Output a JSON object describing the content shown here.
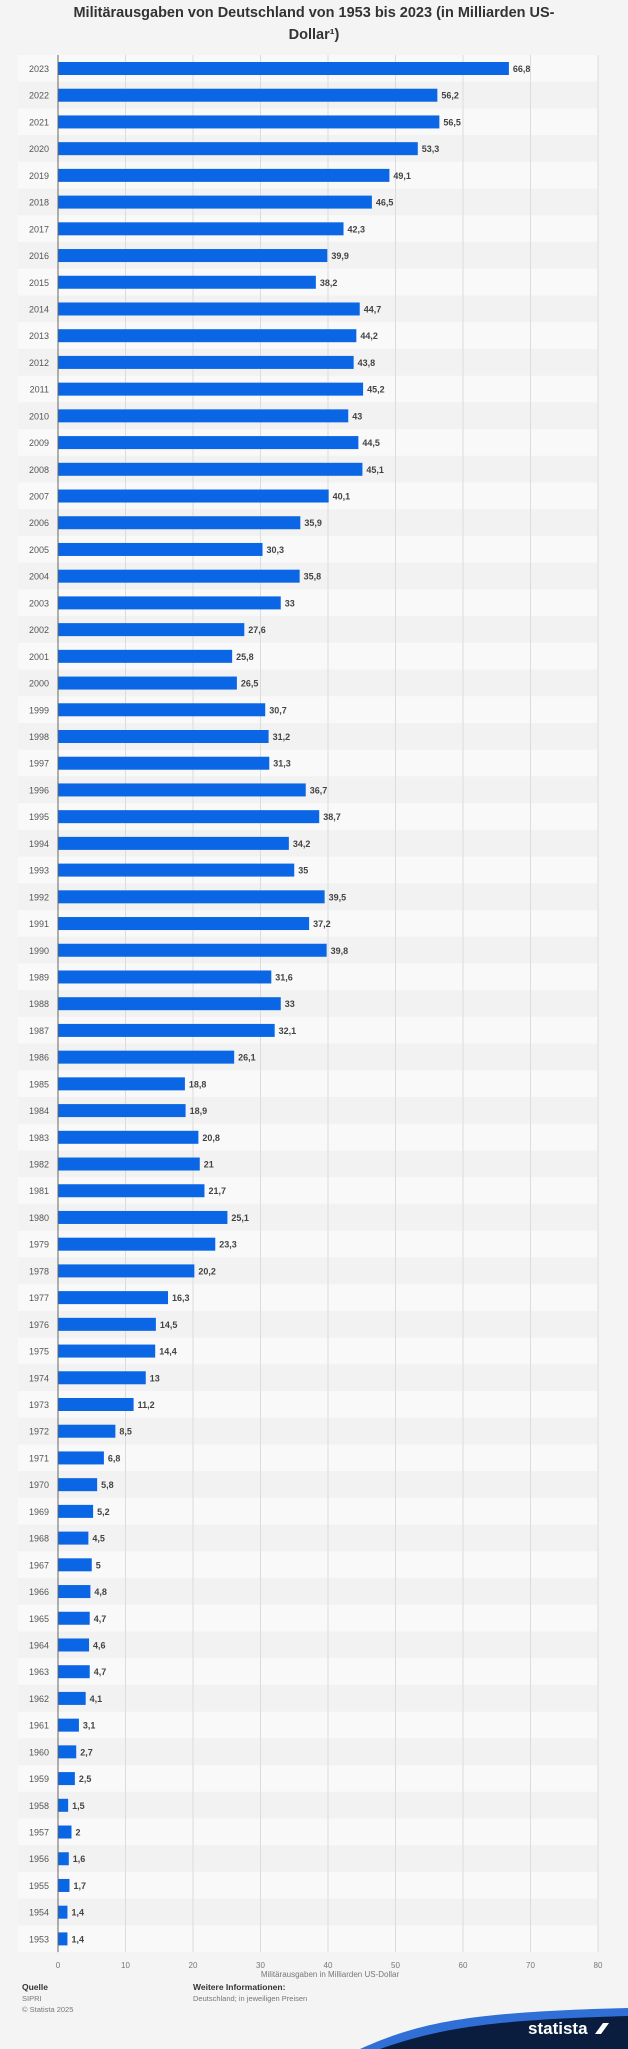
{
  "chart_data": {
    "type": "bar",
    "orientation": "horizontal",
    "title": "Militärausgaben von Deutschland von 1953 bis 2023 (in Milliarden US-Dollar¹)",
    "xlabel": "Militärausgaben in Milliarden US-Dollar",
    "ylabel": "",
    "xlim": [
      0,
      80
    ],
    "ticks": [
      0,
      10,
      20,
      30,
      40,
      50,
      60,
      70,
      80
    ],
    "categories": [
      "2023",
      "2022",
      "2021",
      "2020",
      "2019",
      "2018",
      "2017",
      "2016",
      "2015",
      "2014",
      "2013",
      "2012",
      "2011",
      "2010",
      "2009",
      "2008",
      "2007",
      "2006",
      "2005",
      "2004",
      "2003",
      "2002",
      "2001",
      "2000",
      "1999",
      "1998",
      "1997",
      "1996",
      "1995",
      "1994",
      "1993",
      "1992",
      "1991",
      "1990",
      "1989",
      "1988",
      "1987",
      "1986",
      "1985",
      "1984",
      "1983",
      "1982",
      "1981",
      "1980",
      "1979",
      "1978",
      "1977",
      "1976",
      "1975",
      "1974",
      "1973",
      "1972",
      "1971",
      "1970",
      "1969",
      "1968",
      "1967",
      "1966",
      "1965",
      "1964",
      "1963",
      "1962",
      "1961",
      "1960",
      "1959",
      "1958",
      "1957",
      "1956",
      "1955",
      "1954",
      "1953"
    ],
    "values": [
      66.8,
      56.2,
      56.5,
      53.3,
      49.1,
      46.5,
      42.3,
      39.9,
      38.2,
      44.7,
      44.2,
      43.8,
      45.2,
      43,
      44.5,
      45.1,
      40.1,
      35.9,
      30.3,
      35.8,
      33,
      27.6,
      25.8,
      26.5,
      30.7,
      31.2,
      31.3,
      36.7,
      38.7,
      34.2,
      35,
      39.5,
      37.2,
      39.8,
      31.6,
      33,
      32.1,
      26.1,
      18.8,
      18.9,
      20.8,
      21,
      21.7,
      25.1,
      23.3,
      20.2,
      16.3,
      14.5,
      14.4,
      13,
      11.2,
      8.5,
      6.8,
      5.8,
      5.2,
      4.5,
      5,
      4.8,
      4.7,
      4.6,
      4.7,
      4.1,
      3.1,
      2.7,
      2.5,
      1.5,
      2,
      1.6,
      1.7,
      1.4,
      1.4
    ],
    "value_labels": [
      "66,8",
      "56,2",
      "56,5",
      "53,3",
      "49,1",
      "46,5",
      "42,3",
      "39,9",
      "38,2",
      "44,7",
      "44,2",
      "43,8",
      "45,2",
      "43",
      "44,5",
      "45,1",
      "40,1",
      "35,9",
      "30,3",
      "35,8",
      "33",
      "27,6",
      "25,8",
      "26,5",
      "30,7",
      "31,2",
      "31,3",
      "36,7",
      "38,7",
      "34,2",
      "35",
      "39,5",
      "37,2",
      "39,8",
      "31,6",
      "33",
      "32,1",
      "26,1",
      "18,8",
      "18,9",
      "20,8",
      "21",
      "21,7",
      "25,1",
      "23,3",
      "20,2",
      "16,3",
      "14,5",
      "14,4",
      "13",
      "11,2",
      "8,5",
      "6,8",
      "5,8",
      "5,2",
      "4,5",
      "5",
      "4,8",
      "4,7",
      "4,6",
      "4,7",
      "4,1",
      "3,1",
      "2,7",
      "2,5",
      "1,5",
      "2",
      "1,6",
      "1,7",
      "1,4",
      "1,4"
    ],
    "bar_color": "#0a66e4",
    "grid": true
  },
  "footer": {
    "source_heading": "Quelle",
    "source_lines": [
      "SIPRI",
      "© Statista 2025"
    ],
    "info_heading": "Weitere Informationen:",
    "info_lines": [
      "Deutschland; in jeweiligen Preisen"
    ],
    "brand": "statista"
  },
  "colors": {
    "background": "#f4f4f4",
    "band_light": "#f9f9f9",
    "band_dark": "#f2f2f2",
    "bar": "#0a66e4",
    "brand_navy": "#0b1d3f"
  }
}
